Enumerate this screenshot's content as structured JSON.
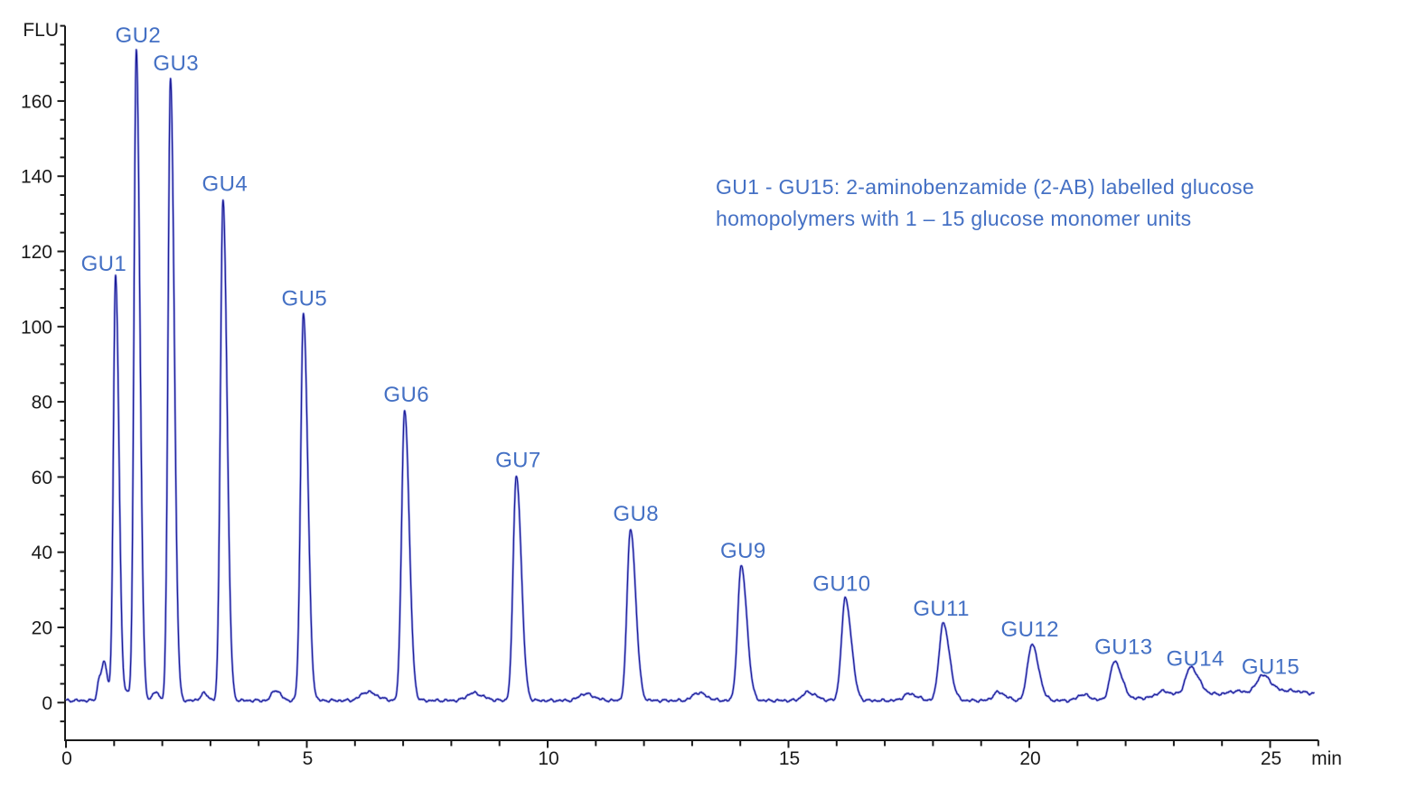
{
  "figure": {
    "y_axis_unit": "FLU",
    "x_axis_unit": "min",
    "annotation": {
      "line1": "GU1 - GU15: 2-aminobenzamide (2-AB) labelled glucose",
      "line2": "homopolymers with 1 – 15 glucose monomer units"
    }
  },
  "chart_data": {
    "type": "line",
    "title": "",
    "xlabel": "min",
    "ylabel": "FLU",
    "xlim": [
      0,
      26
    ],
    "ylim": [
      -10,
      180
    ],
    "x_major_ticks": [
      0,
      5,
      10,
      15,
      20,
      25
    ],
    "x_minor_step": 1,
    "y_major_ticks": [
      0,
      20,
      40,
      60,
      80,
      100,
      120,
      140,
      160
    ],
    "y_minor_step": 5,
    "grid": "off",
    "legend": "none",
    "axis_color": "#1a1a1a",
    "trace_color_core": "#1c1c96",
    "trace_color_halo": "#939ae6",
    "label_color": "#4470c4",
    "peak_tail_factor": 1.55,
    "t_end_min": 25.92,
    "baseline": {
      "level": 0.55,
      "late_rise_start": 21.5,
      "late_rise_end": 23.5,
      "late_amount": 1.7
    },
    "peaks": [
      {
        "label": "GU1",
        "t_min": 1.03,
        "flu": 112.2,
        "sigma": 0.045,
        "label_dx": -13
      },
      {
        "label": "GU2",
        "t_min": 1.46,
        "flu": 173.0,
        "sigma": 0.048,
        "label_dx": 2
      },
      {
        "label": "GU3",
        "t_min": 2.17,
        "flu": 165.5,
        "sigma": 0.05,
        "label_dx": 6
      },
      {
        "label": "GU4",
        "t_min": 3.26,
        "flu": 133.5,
        "sigma": 0.054,
        "label_dx": 2
      },
      {
        "label": "GU5",
        "t_min": 4.93,
        "flu": 103.0,
        "sigma": 0.058,
        "label_dx": 1
      },
      {
        "label": "GU6",
        "t_min": 7.03,
        "flu": 77.4,
        "sigma": 0.062,
        "label_dx": 2
      },
      {
        "label": "GU7",
        "t_min": 9.35,
        "flu": 60.0,
        "sigma": 0.066,
        "label_dx": 2
      },
      {
        "label": "GU8",
        "t_min": 11.72,
        "flu": 45.7,
        "sigma": 0.07,
        "label_dx": 6
      },
      {
        "label": "GU9",
        "t_min": 14.02,
        "flu": 35.8,
        "sigma": 0.075,
        "label_dx": 2
      },
      {
        "label": "GU10",
        "t_min": 16.18,
        "flu": 27.1,
        "sigma": 0.08,
        "label_dx": -4
      },
      {
        "label": "GU11",
        "t_min": 18.21,
        "flu": 20.5,
        "sigma": 0.085,
        "label_dx": -2
      },
      {
        "label": "GU12",
        "t_min": 20.05,
        "flu": 14.9,
        "sigma": 0.09,
        "label_dx": -2
      },
      {
        "label": "GU13",
        "t_min": 21.77,
        "flu": 10.3,
        "sigma": 0.095,
        "label_dx": 10
      },
      {
        "label": "GU14",
        "t_min": 23.35,
        "flu": 7.2,
        "sigma": 0.105,
        "label_dx": 5
      },
      {
        "label": "GU15",
        "t_min": 24.84,
        "flu": 5.0,
        "sigma": 0.12,
        "label_dx": 9
      }
    ],
    "minor_bumps": [
      [
        0.7,
        6.2,
        0.045
      ],
      [
        0.8,
        7.9,
        0.042
      ],
      [
        0.93,
        1.8,
        0.05
      ],
      [
        1.25,
        2.0,
        0.045
      ],
      [
        1.85,
        2.2,
        0.055
      ],
      [
        2.85,
        1.9,
        0.06
      ],
      [
        4.34,
        2.8,
        0.07
      ],
      [
        6.25,
        2.3,
        0.13
      ],
      [
        8.45,
        2.0,
        0.13
      ],
      [
        10.77,
        1.8,
        0.12
      ],
      [
        13.12,
        2.1,
        0.11
      ],
      [
        15.4,
        2.2,
        0.11
      ],
      [
        17.5,
        1.8,
        0.11
      ],
      [
        19.35,
        2.2,
        0.1
      ],
      [
        21.1,
        1.6,
        0.1
      ],
      [
        22.75,
        1.3,
        0.1
      ],
      [
        24.3,
        0.8,
        0.15
      ],
      [
        25.4,
        0.9,
        0.18
      ]
    ]
  }
}
